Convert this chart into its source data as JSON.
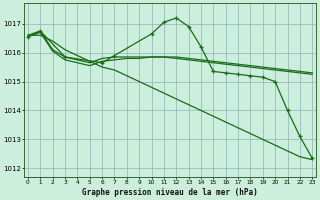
{
  "title": "Graphe pression niveau de la mer (hPa)",
  "background_color": "#cceedd",
  "grid_color": "#99bbbb",
  "line_color": "#1a6b1a",
  "ylim": [
    1011.7,
    1017.7
  ],
  "yticks": [
    1012,
    1013,
    1014,
    1015,
    1016,
    1017
  ],
  "xlim": [
    -0.3,
    23.3
  ],
  "series": {
    "line_diagonal": {
      "x": [
        0,
        1,
        2,
        3,
        4,
        5,
        6,
        7,
        8,
        9,
        10,
        11,
        12,
        13,
        14,
        15,
        16,
        17,
        18,
        19,
        20,
        21,
        22,
        23
      ],
      "y": [
        1016.6,
        1016.6,
        1016.4,
        1016.1,
        1015.9,
        1015.7,
        1015.5,
        1015.4,
        1015.2,
        1015.0,
        1014.8,
        1014.6,
        1014.4,
        1014.2,
        1014.0,
        1013.8,
        1013.6,
        1013.4,
        1013.2,
        1013.0,
        1012.8,
        1012.6,
        1012.4,
        1012.3
      ],
      "has_markers": false,
      "linewidth": 0.9
    },
    "line_flat1": {
      "x": [
        0,
        1,
        2,
        3,
        4,
        5,
        6,
        7,
        8,
        9,
        10,
        11,
        12,
        13,
        14,
        15,
        16,
        17,
        18,
        19,
        20,
        21,
        22,
        23
      ],
      "y": [
        1016.6,
        1016.75,
        1016.1,
        1015.85,
        1015.75,
        1015.65,
        1015.8,
        1015.85,
        1015.85,
        1015.85,
        1015.85,
        1015.85,
        1015.85,
        1015.8,
        1015.75,
        1015.7,
        1015.65,
        1015.6,
        1015.55,
        1015.5,
        1015.45,
        1015.4,
        1015.35,
        1015.3
      ],
      "has_markers": false,
      "linewidth": 0.9
    },
    "line_flat2": {
      "x": [
        0,
        1,
        2,
        3,
        4,
        5,
        6,
        7,
        8,
        9,
        10,
        11,
        12,
        13,
        14,
        15,
        16,
        17,
        18,
        19,
        20,
        21,
        22,
        23
      ],
      "y": [
        1016.55,
        1016.7,
        1016.05,
        1015.75,
        1015.65,
        1015.55,
        1015.7,
        1015.75,
        1015.8,
        1015.8,
        1015.85,
        1015.85,
        1015.8,
        1015.75,
        1015.7,
        1015.65,
        1015.6,
        1015.55,
        1015.5,
        1015.45,
        1015.4,
        1015.35,
        1015.3,
        1015.25
      ],
      "has_markers": false,
      "linewidth": 0.9
    },
    "line_peak": {
      "x": [
        0,
        1,
        3,
        6,
        7,
        10,
        11,
        12,
        13,
        14,
        15,
        16,
        17,
        18,
        19,
        20,
        21,
        22,
        23
      ],
      "y": [
        1016.55,
        1016.75,
        1015.85,
        1015.65,
        1015.9,
        1016.65,
        1017.05,
        1017.2,
        1016.9,
        1016.2,
        1015.35,
        1015.3,
        1015.25,
        1015.2,
        1015.15,
        1015.0,
        1014.0,
        1013.1,
        1012.35
      ],
      "has_markers": true,
      "linewidth": 0.9
    }
  }
}
